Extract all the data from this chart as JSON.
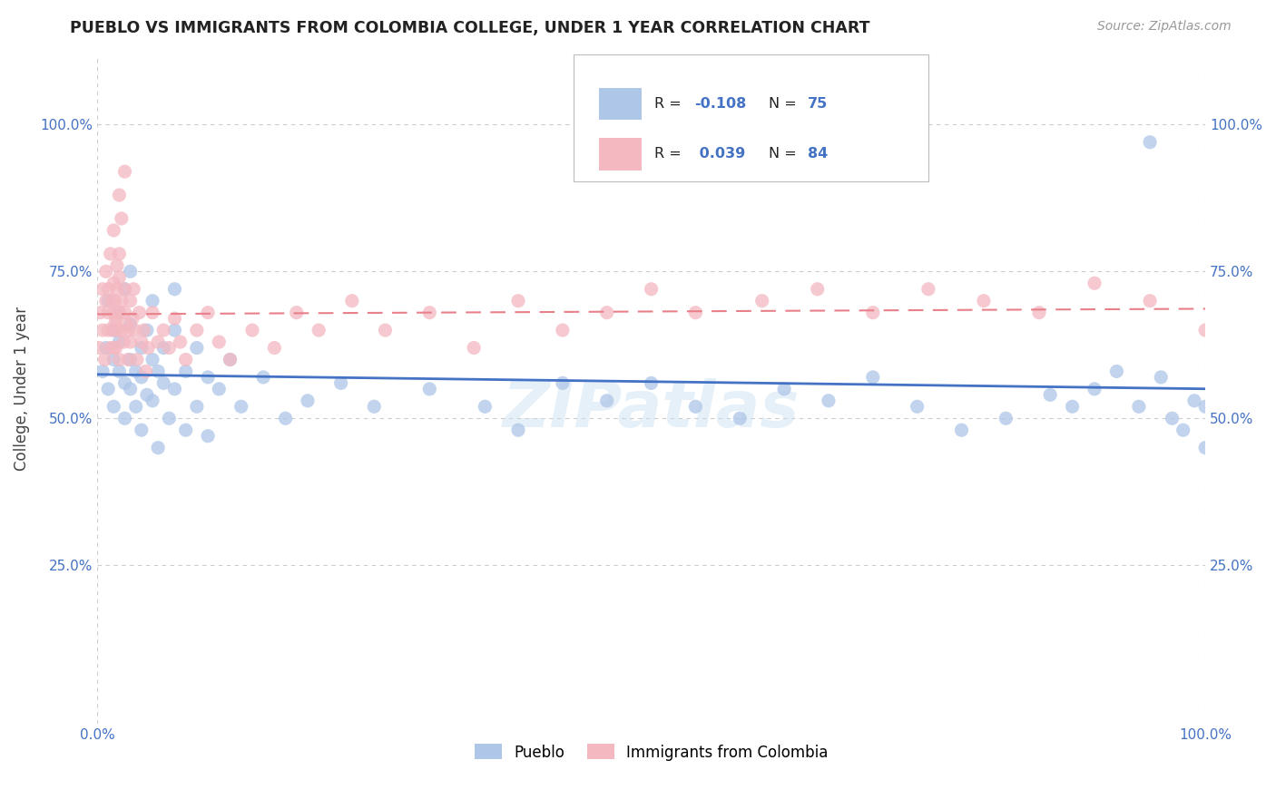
{
  "title": "PUEBLO VS IMMIGRANTS FROM COLOMBIA COLLEGE, UNDER 1 YEAR CORRELATION CHART",
  "source": "Source: ZipAtlas.com",
  "ylabel": "College, Under 1 year",
  "background_color": "#ffffff",
  "grid_color": "#cccccc",
  "pueblo_color": "#aec6e8",
  "colombia_color": "#f4b8c1",
  "pueblo_line_color": "#4472c4",
  "colombia_line_color": "#e8808a",
  "pueblo_R": -0.108,
  "pueblo_N": 75,
  "colombia_R": 0.039,
  "colombia_N": 84,
  "legend_label_pueblo": "Pueblo",
  "legend_label_colombia": "Immigrants from Colombia",
  "watermark": "ZIPatlas",
  "xlim": [
    0.0,
    1.0
  ],
  "ylim": [
    -0.02,
    1.12
  ],
  "yticks": [
    0.25,
    0.5,
    0.75,
    1.0
  ],
  "xticks": [
    0.0,
    1.0
  ],
  "tick_label_color": "#4472c4",
  "pueblo_x": [
    0.005,
    0.008,
    0.01,
    0.01,
    0.015,
    0.015,
    0.015,
    0.02,
    0.02,
    0.02,
    0.025,
    0.025,
    0.025,
    0.03,
    0.03,
    0.03,
    0.03,
    0.035,
    0.035,
    0.04,
    0.04,
    0.04,
    0.045,
    0.045,
    0.05,
    0.05,
    0.05,
    0.055,
    0.055,
    0.06,
    0.06,
    0.065,
    0.07,
    0.07,
    0.07,
    0.08,
    0.08,
    0.09,
    0.09,
    0.1,
    0.1,
    0.11,
    0.12,
    0.13,
    0.15,
    0.17,
    0.19,
    0.22,
    0.25,
    0.3,
    0.35,
    0.38,
    0.42,
    0.46,
    0.5,
    0.54,
    0.58,
    0.62,
    0.66,
    0.7,
    0.74,
    0.78,
    0.82,
    0.86,
    0.88,
    0.9,
    0.92,
    0.94,
    0.96,
    0.97,
    0.98,
    0.99,
    1.0,
    1.0,
    0.95
  ],
  "pueblo_y": [
    0.58,
    0.62,
    0.55,
    0.7,
    0.6,
    0.65,
    0.52,
    0.58,
    0.63,
    0.68,
    0.56,
    0.72,
    0.5,
    0.6,
    0.66,
    0.55,
    0.75,
    0.58,
    0.52,
    0.62,
    0.57,
    0.48,
    0.65,
    0.54,
    0.6,
    0.7,
    0.53,
    0.58,
    0.45,
    0.62,
    0.56,
    0.5,
    0.65,
    0.72,
    0.55,
    0.58,
    0.48,
    0.62,
    0.52,
    0.57,
    0.47,
    0.55,
    0.6,
    0.52,
    0.57,
    0.5,
    0.53,
    0.56,
    0.52,
    0.55,
    0.52,
    0.48,
    0.56,
    0.53,
    0.56,
    0.52,
    0.5,
    0.55,
    0.53,
    0.57,
    0.52,
    0.48,
    0.5,
    0.54,
    0.52,
    0.55,
    0.58,
    0.52,
    0.57,
    0.5,
    0.48,
    0.53,
    0.52,
    0.45,
    0.97
  ],
  "colombia_x": [
    0.002,
    0.003,
    0.005,
    0.005,
    0.007,
    0.008,
    0.008,
    0.01,
    0.01,
    0.01,
    0.012,
    0.012,
    0.014,
    0.014,
    0.015,
    0.015,
    0.015,
    0.016,
    0.016,
    0.017,
    0.017,
    0.018,
    0.018,
    0.02,
    0.02,
    0.02,
    0.02,
    0.022,
    0.022,
    0.024,
    0.025,
    0.025,
    0.026,
    0.028,
    0.028,
    0.03,
    0.03,
    0.032,
    0.033,
    0.034,
    0.036,
    0.038,
    0.04,
    0.042,
    0.044,
    0.046,
    0.05,
    0.055,
    0.06,
    0.065,
    0.07,
    0.075,
    0.08,
    0.09,
    0.1,
    0.11,
    0.12,
    0.14,
    0.16,
    0.18,
    0.2,
    0.23,
    0.26,
    0.3,
    0.34,
    0.38,
    0.42,
    0.46,
    0.5,
    0.54,
    0.6,
    0.65,
    0.7,
    0.75,
    0.8,
    0.85,
    0.9,
    0.95,
    1.0,
    0.015,
    0.018,
    0.02,
    0.022,
    0.025
  ],
  "colombia_y": [
    0.62,
    0.68,
    0.65,
    0.72,
    0.6,
    0.7,
    0.75,
    0.65,
    0.68,
    0.72,
    0.62,
    0.78,
    0.65,
    0.7,
    0.62,
    0.68,
    0.73,
    0.66,
    0.7,
    0.62,
    0.67,
    0.72,
    0.65,
    0.6,
    0.68,
    0.74,
    0.78,
    0.65,
    0.7,
    0.63,
    0.68,
    0.72,
    0.66,
    0.6,
    0.65,
    0.7,
    0.63,
    0.67,
    0.72,
    0.65,
    0.6,
    0.68,
    0.63,
    0.65,
    0.58,
    0.62,
    0.68,
    0.63,
    0.65,
    0.62,
    0.67,
    0.63,
    0.6,
    0.65,
    0.68,
    0.63,
    0.6,
    0.65,
    0.62,
    0.68,
    0.65,
    0.7,
    0.65,
    0.68,
    0.62,
    0.7,
    0.65,
    0.68,
    0.72,
    0.68,
    0.7,
    0.72,
    0.68,
    0.72,
    0.7,
    0.68,
    0.73,
    0.7,
    0.65,
    0.82,
    0.76,
    0.88,
    0.84,
    0.92
  ]
}
